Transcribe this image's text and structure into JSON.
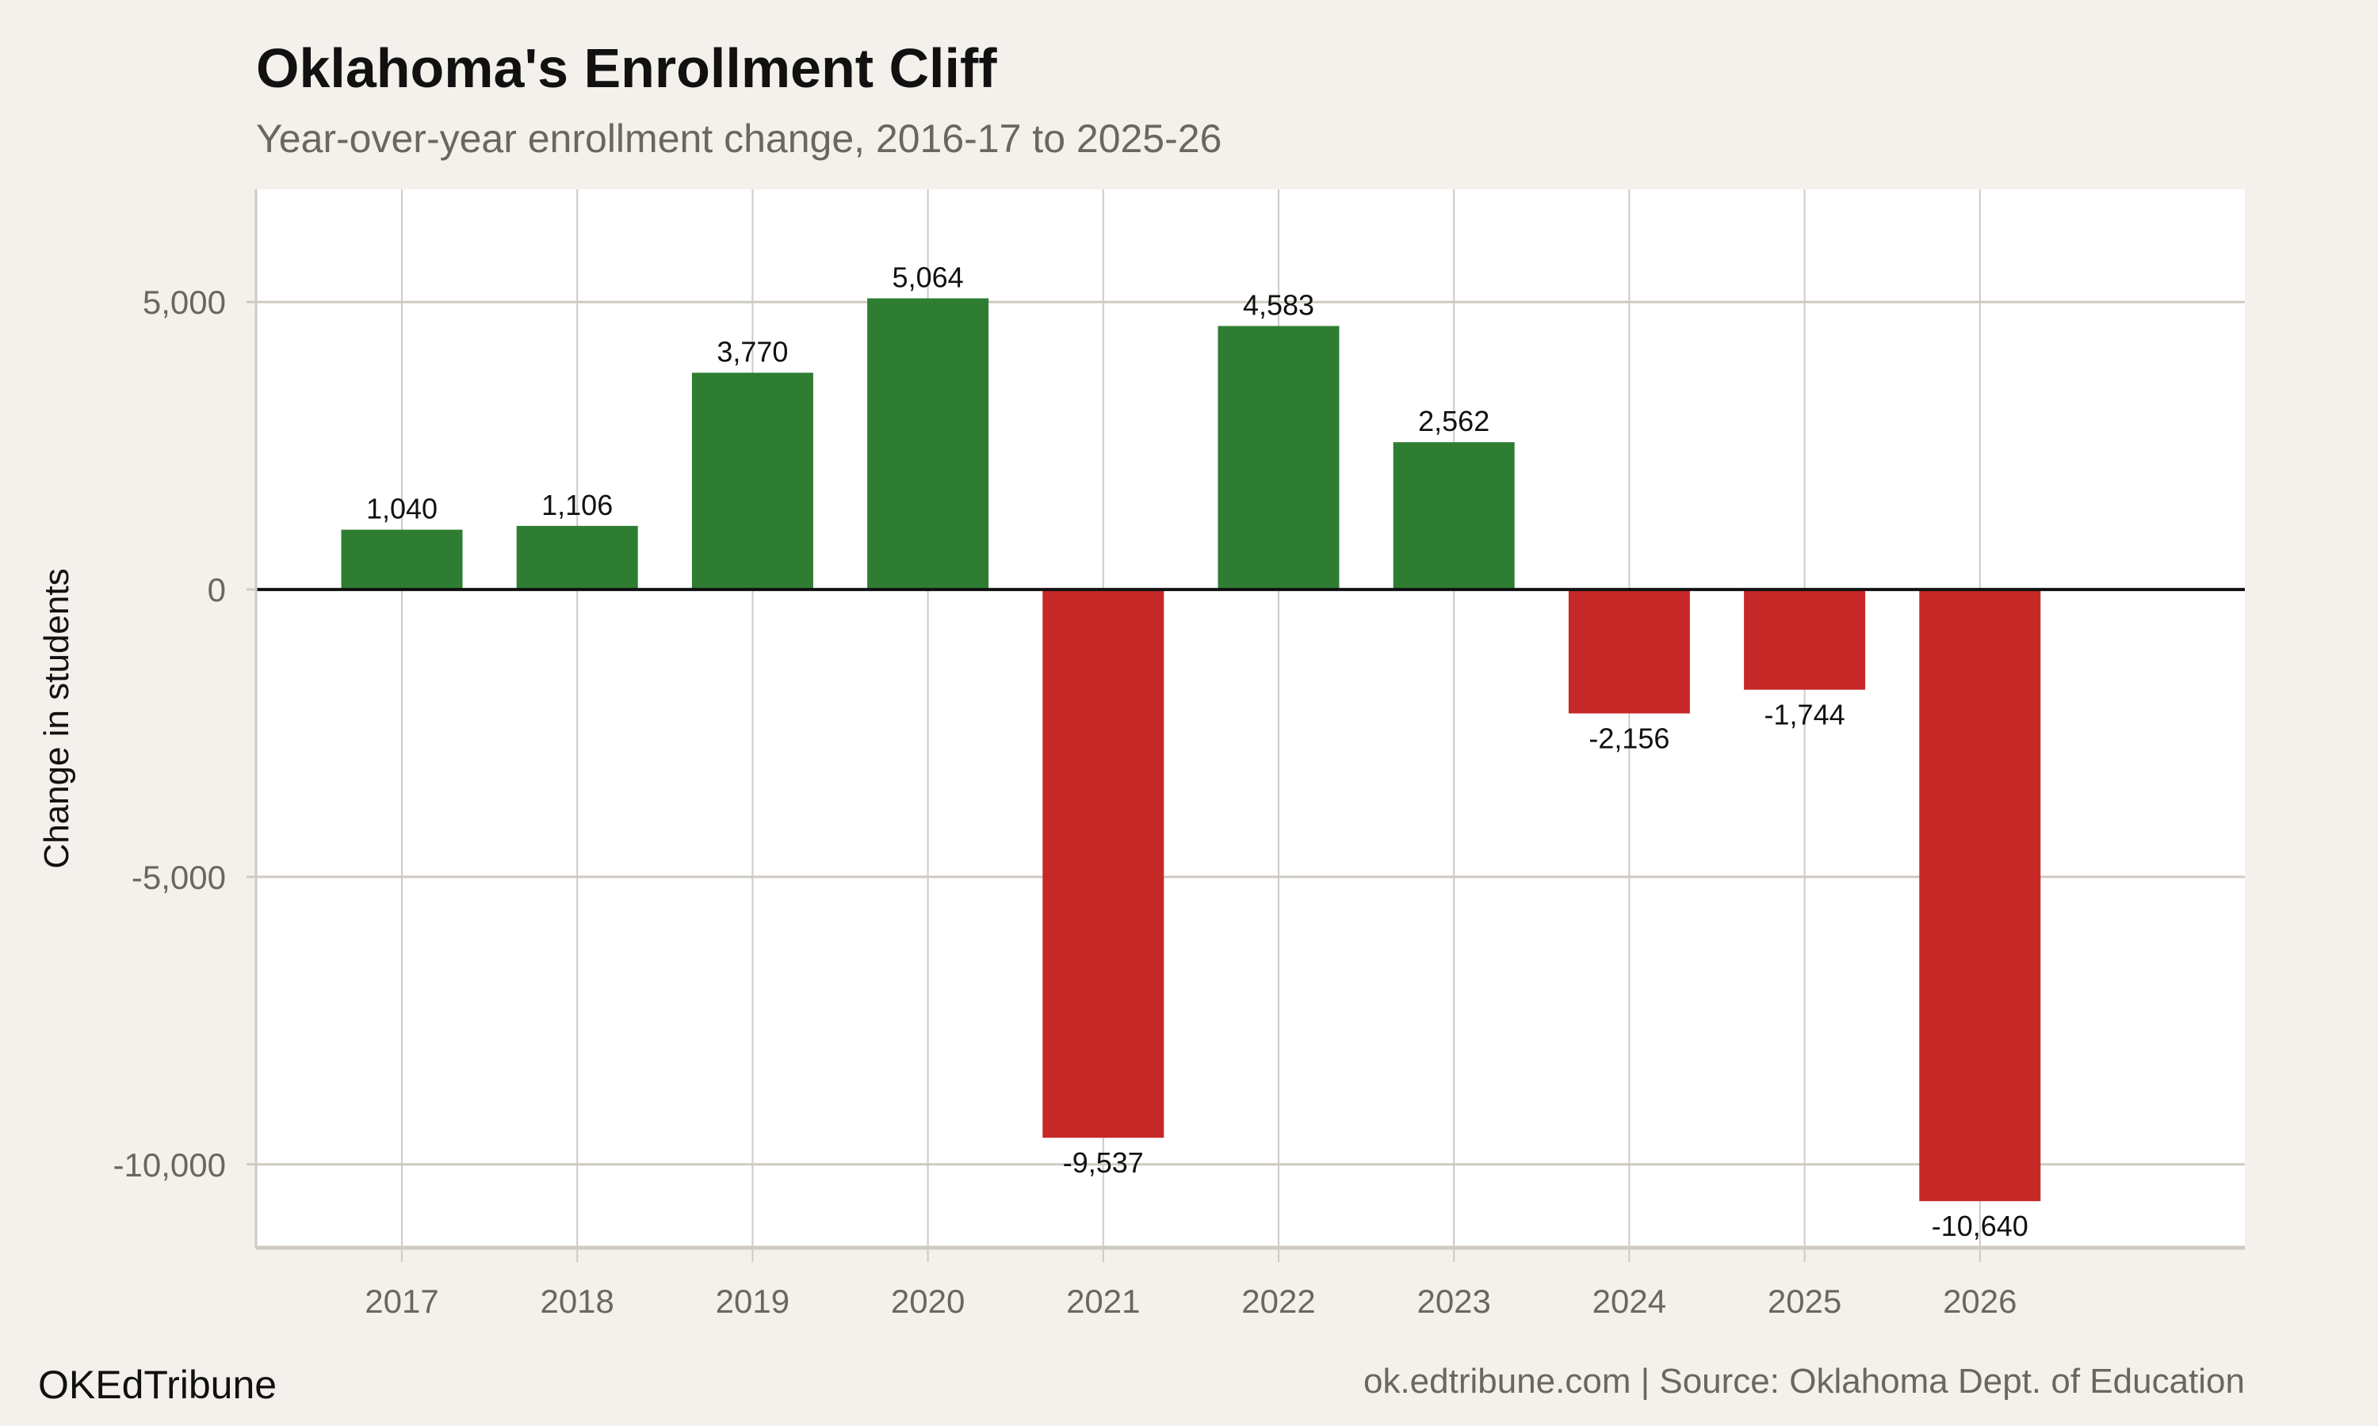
{
  "chart_data": {
    "type": "bar",
    "title": "Oklahoma's Enrollment Cliff",
    "subtitle": "Year-over-year enrollment change, 2016-17 to 2025-26",
    "xlabel": "",
    "ylabel": "Change in students",
    "categories": [
      "2017",
      "2018",
      "2019",
      "2020",
      "2021",
      "2022",
      "2023",
      "2024",
      "2025",
      "2026"
    ],
    "values": [
      1040,
      1106,
      3770,
      5064,
      -9537,
      4583,
      2562,
      -2156,
      -1744,
      -10640
    ],
    "data_labels": [
      "1,040",
      "1,106",
      "3,770",
      "5,064",
      "-9,537",
      "4,583",
      "2,562",
      "-2,156",
      "-1,744",
      "-10,640"
    ],
    "yticks": [
      -10000,
      -5000,
      0,
      5000
    ],
    "ytick_labels": [
      "-10,000",
      "-5,000",
      "0",
      "5,000"
    ],
    "ylim": [
      -11450,
      6960
    ],
    "grid": true,
    "legend": "none",
    "colors": {
      "positive": "#2e7d32",
      "negative": "#c62828",
      "background": "#f4f1ec",
      "panel": "#ffffff",
      "grid": "#cfcac2"
    }
  },
  "footer": {
    "brand": "OKEdTribune",
    "source": "ok.edtribune.com | Source: Oklahoma Dept. of Education"
  }
}
